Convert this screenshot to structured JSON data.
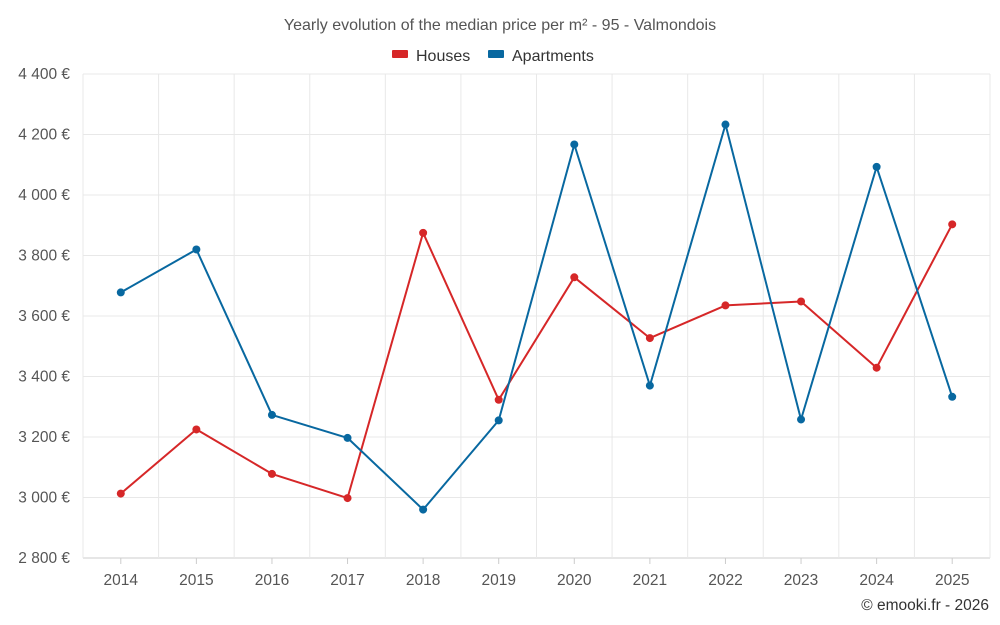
{
  "chart_data": {
    "type": "line",
    "title": "Yearly evolution of the median price per m² - 95 - Valmondois",
    "categories": [
      "2014",
      "2015",
      "2016",
      "2017",
      "2018",
      "2019",
      "2020",
      "2021",
      "2022",
      "2023",
      "2024",
      "2025"
    ],
    "series": [
      {
        "name": "Houses",
        "color": "#d62728",
        "values": [
          3013,
          3225,
          3078,
          2998,
          3875,
          3323,
          3728,
          3527,
          3635,
          3648,
          3429,
          3903
        ]
      },
      {
        "name": "Apartments",
        "color": "#0868a0",
        "values": [
          3678,
          3820,
          3273,
          3197,
          2960,
          3255,
          4167,
          3370,
          4233,
          3258,
          4093,
          3333
        ]
      }
    ],
    "ylim": [
      2800,
      4400
    ],
    "yticks": [
      2800,
      3000,
      3200,
      3400,
      3600,
      3800,
      4000,
      4200,
      4400
    ],
    "ytick_labels": [
      "2 800 €",
      "3 000 €",
      "3 200 €",
      "3 400 €",
      "3 600 €",
      "3 800 €",
      "4 000 €",
      "4 200 €",
      "4 400 €"
    ],
    "xlabel": "",
    "ylabel": "",
    "grid": true,
    "legend_position": "top-center"
  },
  "footer": {
    "credit": "© emooki.fr - 2026"
  }
}
